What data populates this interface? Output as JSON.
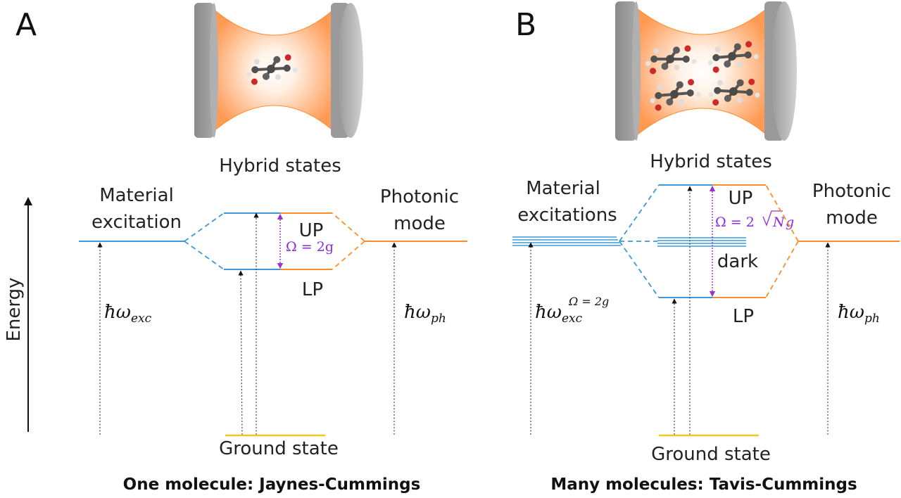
{
  "colors": {
    "material": "#3a9ad9",
    "photonic": "#ff8c2a",
    "ground": "#f5c518",
    "rabi": "#9b30d0",
    "mirror_dark": "#8c8c8c",
    "mirror_light": "#c9c9c9",
    "cavity_glow": "#ff9a55"
  },
  "panel_a": {
    "letter": "A",
    "hybrid_title": "Hybrid states",
    "material_line1": "Material",
    "material_line2": "excitation",
    "photonic_line1": "Photonic",
    "photonic_line2": "mode",
    "up": "UP",
    "lp": "LP",
    "rabi": "Ω = 2g",
    "exc_symbol": "ħω",
    "exc_sub": "exc",
    "ph_symbol": "ħω",
    "ph_sub": "ph",
    "ground": "Ground state",
    "caption": "One molecule: Jaynes-Cummings",
    "molecule_count": 1
  },
  "panel_b": {
    "letter": "B",
    "hybrid_title": "Hybrid states",
    "material_line1": "Material",
    "material_line2": "excitations",
    "photonic_line1": "Photonic",
    "photonic_line2": "mode",
    "up": "UP",
    "lp": "LP",
    "dark": "dark",
    "rabi_prefix": "Ω = 2",
    "rabi_root": "N",
    "rabi_suffix": "g",
    "exc_symbol": "ħω",
    "exc_sub": "exc",
    "exc_sup": "Ω = 2g",
    "ph_symbol": "ħω",
    "ph_sub": "ph",
    "ground": "Ground state",
    "caption": "Many molecules: Tavis-Cummings",
    "molecule_count": 4
  },
  "axis": {
    "label": "Energy"
  }
}
